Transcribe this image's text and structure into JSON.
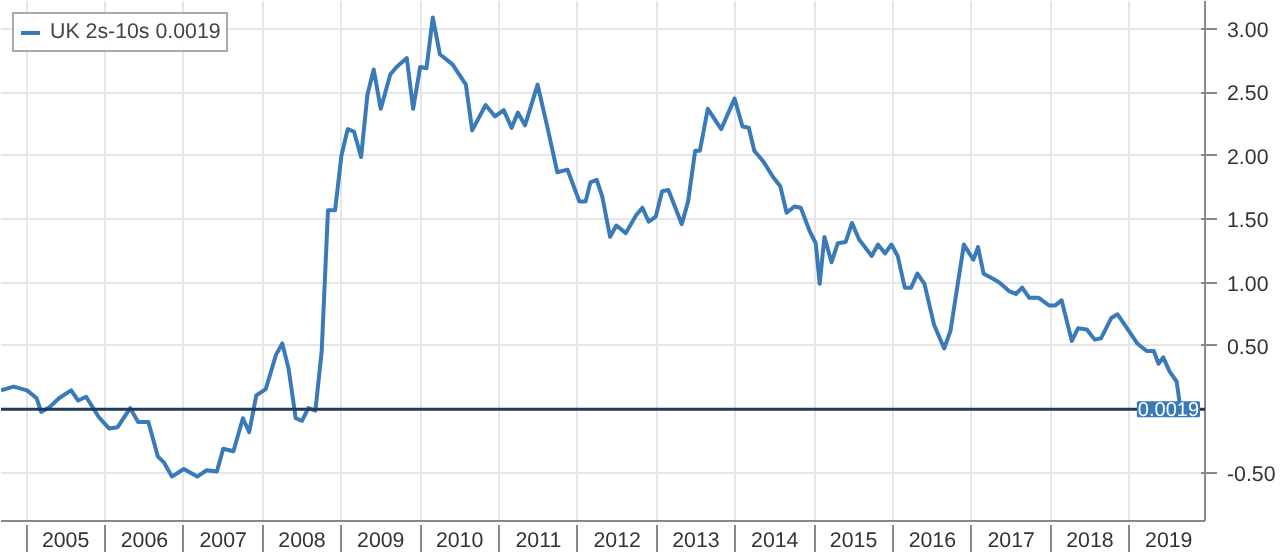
{
  "chart_data": {
    "type": "line",
    "legend": "top left",
    "grid": true,
    "marker": "none",
    "line_style": "solid",
    "x": [
      2004.68,
      2004.84,
      2005.01,
      2005.13,
      2005.19,
      2005.3,
      2005.42,
      2005.57,
      2005.66,
      2005.76,
      2005.92,
      2006.05,
      2006.16,
      2006.32,
      2006.42,
      2006.55,
      2006.67,
      2006.75,
      2006.85,
      2007.0,
      2007.17,
      2007.29,
      2007.42,
      2007.5,
      2007.63,
      2007.75,
      2007.83,
      2007.92,
      2008.04,
      2008.17,
      2008.25,
      2008.33,
      2008.42,
      2008.5,
      2008.58,
      2008.67,
      2008.75,
      2008.83,
      2008.92,
      2009.0,
      2009.08,
      2009.16,
      2009.25,
      2009.33,
      2009.41,
      2009.5,
      2009.62,
      2009.7,
      2009.83,
      2009.91,
      2010.0,
      2010.08,
      2010.16,
      2010.25,
      2010.41,
      2010.58,
      2010.66,
      2010.83,
      2010.95,
      2011.06,
      2011.16,
      2011.24,
      2011.33,
      2011.49,
      2011.62,
      2011.74,
      2011.87,
      2012.02,
      2012.1,
      2012.16,
      2012.24,
      2012.31,
      2012.41,
      2012.49,
      2012.61,
      2012.74,
      2012.82,
      2012.9,
      2012.99,
      2013.07,
      2013.15,
      2013.32,
      2013.4,
      2013.49,
      2013.55,
      2013.65,
      2013.82,
      2013.99,
      2014.09,
      2014.17,
      2014.24,
      2014.36,
      2014.48,
      2014.57,
      2014.65,
      2014.75,
      2014.83,
      2014.94,
      2015.02,
      2015.07,
      2015.13,
      2015.22,
      2015.3,
      2015.4,
      2015.48,
      2015.57,
      2015.73,
      2015.81,
      2015.9,
      2015.98,
      2016.06,
      2016.15,
      2016.23,
      2016.31,
      2016.4,
      2016.52,
      2016.65,
      2016.73,
      2016.9,
      2017.02,
      2017.08,
      2017.15,
      2017.27,
      2017.35,
      2017.48,
      2017.56,
      2017.64,
      2017.73,
      2017.85,
      2017.98,
      2018.06,
      2018.14,
      2018.27,
      2018.35,
      2018.46,
      2018.56,
      2018.64,
      2018.77,
      2018.85,
      2018.97,
      2019.1,
      2019.22,
      2019.31,
      2019.37,
      2019.43,
      2019.51,
      2019.6,
      2019.65
    ],
    "series": [
      {
        "name": "UK 2s-10s 0.0019",
        "color": "#3a7ab8",
        "values": [
          0.15,
          0.18,
          0.15,
          0.09,
          -0.02,
          0.02,
          0.09,
          0.15,
          0.07,
          0.1,
          -0.06,
          -0.15,
          -0.14,
          0.01,
          -0.1,
          -0.1,
          -0.37,
          -0.42,
          -0.53,
          -0.47,
          -0.53,
          -0.48,
          -0.49,
          -0.31,
          -0.33,
          -0.07,
          -0.18,
          0.11,
          0.16,
          0.43,
          0.52,
          0.32,
          -0.07,
          -0.09,
          0.01,
          -0.01,
          0.46,
          1.57,
          1.57,
          2.0,
          2.21,
          2.19,
          1.99,
          2.48,
          2.68,
          2.37,
          2.64,
          2.7,
          2.77,
          2.37,
          2.7,
          2.69,
          3.09,
          2.8,
          2.72,
          2.56,
          2.2,
          2.4,
          2.31,
          2.36,
          2.22,
          2.34,
          2.24,
          2.56,
          2.21,
          1.87,
          1.89,
          1.64,
          1.64,
          1.79,
          1.81,
          1.68,
          1.36,
          1.45,
          1.39,
          1.53,
          1.59,
          1.48,
          1.52,
          1.72,
          1.73,
          1.46,
          1.64,
          2.04,
          2.04,
          2.37,
          2.21,
          2.45,
          2.23,
          2.22,
          2.04,
          1.95,
          1.83,
          1.76,
          1.55,
          1.6,
          1.59,
          1.41,
          1.31,
          0.99,
          1.36,
          1.16,
          1.31,
          1.32,
          1.47,
          1.34,
          1.21,
          1.3,
          1.23,
          1.3,
          1.21,
          0.96,
          0.96,
          1.07,
          0.99,
          0.67,
          0.48,
          0.62,
          1.3,
          1.18,
          1.28,
          1.07,
          1.03,
          1.0,
          0.93,
          0.91,
          0.96,
          0.88,
          0.88,
          0.82,
          0.82,
          0.86,
          0.54,
          0.64,
          0.63,
          0.55,
          0.56,
          0.72,
          0.75,
          0.64,
          0.52,
          0.46,
          0.46,
          0.36,
          0.41,
          0.3,
          0.22,
          0.0019
        ]
      }
    ],
    "xlim": [
      2004.68,
      2019.96
    ],
    "xticks": [
      {
        "value": 2005,
        "label": null
      },
      {
        "value": 2005.5,
        "label": "2005"
      },
      {
        "value": 2006,
        "label": null
      },
      {
        "value": 2006.5,
        "label": "2006"
      },
      {
        "value": 2007,
        "label": null
      },
      {
        "value": 2007.5,
        "label": "2007"
      },
      {
        "value": 2008,
        "label": null
      },
      {
        "value": 2008.5,
        "label": "2008"
      },
      {
        "value": 2009,
        "label": null
      },
      {
        "value": 2009.5,
        "label": "2009"
      },
      {
        "value": 2010,
        "label": null
      },
      {
        "value": 2010.5,
        "label": "2010"
      },
      {
        "value": 2011,
        "label": null
      },
      {
        "value": 2011.5,
        "label": "2011"
      },
      {
        "value": 2012,
        "label": null
      },
      {
        "value": 2012.5,
        "label": "2012"
      },
      {
        "value": 2013,
        "label": null
      },
      {
        "value": 2013.5,
        "label": "2013"
      },
      {
        "value": 2014,
        "label": null
      },
      {
        "value": 2014.5,
        "label": "2014"
      },
      {
        "value": 2015,
        "label": null
      },
      {
        "value": 2015.5,
        "label": "2015"
      },
      {
        "value": 2016,
        "label": null
      },
      {
        "value": 2016.5,
        "label": "2016"
      },
      {
        "value": 2017,
        "label": null
      },
      {
        "value": 2017.5,
        "label": "2017"
      },
      {
        "value": 2018,
        "label": null
      },
      {
        "value": 2018.5,
        "label": "2018"
      },
      {
        "value": 2019,
        "label": null
      },
      {
        "value": 2019.5,
        "label": "2019"
      }
    ],
    "ylim": [
      -0.88,
      3.22
    ],
    "yticks": [
      {
        "value": -0.5,
        "label": "-0.50"
      },
      {
        "value": 0.5,
        "label": "0.50"
      },
      {
        "value": 1,
        "label": "1.00"
      },
      {
        "value": 1.5,
        "label": "1.50"
      },
      {
        "value": 2,
        "label": "2.00"
      },
      {
        "value": 2.5,
        "label": "2.50"
      },
      {
        "value": 3,
        "label": "3.00"
      }
    ],
    "ref_lines": [
      {
        "axis": "y",
        "value": 0.0019,
        "label": "0.0019",
        "color": "#1f3b5c"
      }
    ]
  }
}
